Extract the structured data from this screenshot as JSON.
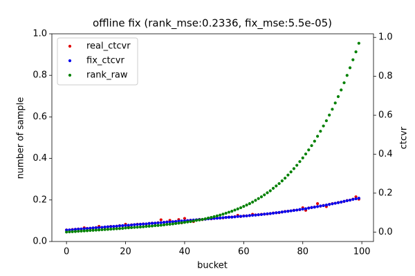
{
  "chart_data": {
    "type": "scatter",
    "title": "offline fix (rank_mse:0.2336, fix_mse:5.5e-05)",
    "xlabel": "bucket",
    "ylabel": "number of sample",
    "y2label": "ctcvr",
    "x": [
      0,
      1,
      2,
      3,
      4,
      5,
      6,
      7,
      8,
      9,
      10,
      11,
      12,
      13,
      14,
      15,
      16,
      17,
      18,
      19,
      20,
      21,
      22,
      23,
      24,
      25,
      26,
      27,
      28,
      29,
      30,
      31,
      32,
      33,
      34,
      35,
      36,
      37,
      38,
      39,
      40,
      41,
      42,
      43,
      44,
      45,
      46,
      47,
      48,
      49,
      50,
      51,
      52,
      53,
      54,
      55,
      56,
      57,
      58,
      59,
      60,
      61,
      62,
      63,
      64,
      65,
      66,
      67,
      68,
      69,
      70,
      71,
      72,
      73,
      74,
      75,
      76,
      77,
      78,
      79,
      80,
      81,
      82,
      83,
      84,
      85,
      86,
      87,
      88,
      89,
      90,
      91,
      92,
      93,
      94,
      95,
      96,
      97,
      98,
      99
    ],
    "series": [
      {
        "name": "real_ctcvr",
        "color": "#e00000",
        "axis": "y2",
        "values": [
          0.011,
          0.01,
          0.013,
          0.014,
          0.016,
          0.015,
          0.022,
          0.019,
          0.018,
          0.021,
          0.023,
          0.029,
          0.024,
          0.025,
          0.027,
          0.029,
          0.028,
          0.03,
          0.033,
          0.032,
          0.04,
          0.027,
          0.037,
          0.038,
          0.04,
          0.04,
          0.042,
          0.041,
          0.044,
          0.046,
          0.045,
          0.048,
          0.063,
          0.05,
          0.052,
          0.06,
          0.053,
          0.055,
          0.064,
          0.047,
          0.07,
          0.059,
          0.061,
          0.054,
          0.063,
          0.065,
          0.064,
          0.066,
          0.069,
          0.068,
          0.07,
          0.072,
          0.072,
          0.073,
          0.075,
          0.077,
          0.077,
          0.079,
          0.086,
          0.08,
          0.083,
          0.083,
          0.085,
          0.091,
          0.088,
          0.089,
          0.091,
          0.092,
          0.093,
          0.095,
          0.098,
          0.099,
          0.1,
          0.103,
          0.106,
          0.107,
          0.109,
          0.112,
          0.113,
          0.115,
          0.125,
          0.112,
          0.124,
          0.126,
          0.129,
          0.146,
          0.133,
          0.137,
          0.131,
          0.142,
          0.146,
          0.148,
          0.152,
          0.154,
          0.157,
          0.162,
          0.164,
          0.169,
          0.181,
          0.169
        ]
      },
      {
        "name": "fix_ctcvr",
        "color": "#0000ee",
        "axis": "y2",
        "values": [
          0.01,
          0.011,
          0.012,
          0.014,
          0.015,
          0.016,
          0.017,
          0.018,
          0.02,
          0.021,
          0.022,
          0.023,
          0.024,
          0.026,
          0.027,
          0.028,
          0.029,
          0.03,
          0.032,
          0.033,
          0.034,
          0.035,
          0.036,
          0.038,
          0.039,
          0.04,
          0.041,
          0.042,
          0.044,
          0.045,
          0.046,
          0.047,
          0.048,
          0.05,
          0.051,
          0.052,
          0.053,
          0.054,
          0.056,
          0.057,
          0.058,
          0.059,
          0.06,
          0.062,
          0.063,
          0.064,
          0.065,
          0.066,
          0.068,
          0.069,
          0.07,
          0.071,
          0.072,
          0.074,
          0.075,
          0.076,
          0.077,
          0.078,
          0.08,
          0.081,
          0.082,
          0.083,
          0.085,
          0.086,
          0.087,
          0.089,
          0.09,
          0.092,
          0.094,
          0.095,
          0.097,
          0.099,
          0.101,
          0.103,
          0.105,
          0.107,
          0.109,
          0.111,
          0.113,
          0.116,
          0.118,
          0.12,
          0.123,
          0.126,
          0.128,
          0.131,
          0.134,
          0.136,
          0.139,
          0.142,
          0.145,
          0.148,
          0.151,
          0.154,
          0.158,
          0.161,
          0.164,
          0.168,
          0.171,
          0.174
        ]
      },
      {
        "name": "rank_raw",
        "color": "#008000",
        "axis": "y2",
        "values": [
          0,
          0.001,
          0.002,
          0.003,
          0.004,
          0.005,
          0.006,
          0.007,
          0.008,
          0.009,
          0.01,
          0.011,
          0.012,
          0.013,
          0.014,
          0.015,
          0.016,
          0.017,
          0.018,
          0.019,
          0.021,
          0.022,
          0.023,
          0.024,
          0.025,
          0.026,
          0.027,
          0.029,
          0.03,
          0.031,
          0.033,
          0.034,
          0.035,
          0.037,
          0.039,
          0.04,
          0.042,
          0.044,
          0.046,
          0.048,
          0.05,
          0.052,
          0.054,
          0.057,
          0.06,
          0.062,
          0.065,
          0.068,
          0.072,
          0.075,
          0.079,
          0.083,
          0.087,
          0.092,
          0.097,
          0.102,
          0.107,
          0.113,
          0.119,
          0.125,
          0.132,
          0.139,
          0.146,
          0.154,
          0.163,
          0.172,
          0.181,
          0.191,
          0.202,
          0.212,
          0.225,
          0.237,
          0.249,
          0.263,
          0.277,
          0.293,
          0.309,
          0.326,
          0.343,
          0.362,
          0.381,
          0.401,
          0.422,
          0.444,
          0.467,
          0.492,
          0.518,
          0.545,
          0.572,
          0.601,
          0.631,
          0.663,
          0.696,
          0.73,
          0.767,
          0.805,
          0.844,
          0.885,
          0.926,
          0.97
        ]
      }
    ],
    "xlim": [
      -4.95,
      103.95
    ],
    "xticks": [
      0,
      20,
      40,
      60,
      80,
      100
    ],
    "ylim": [
      0,
      1
    ],
    "yticks": [
      {
        "value": 0,
        "label": "0.0"
      },
      0.2,
      0.4,
      0.6,
      0.8,
      {
        "value": 1,
        "label": "1.0"
      }
    ],
    "y2lim": [
      -0.0485,
      1.0185
    ],
    "y2ticks": [
      {
        "value": 0,
        "label": "0.0"
      },
      0.2,
      0.4,
      0.6,
      0.8,
      {
        "value": 1,
        "label": "1.0"
      }
    ],
    "legend": "upper left"
  }
}
